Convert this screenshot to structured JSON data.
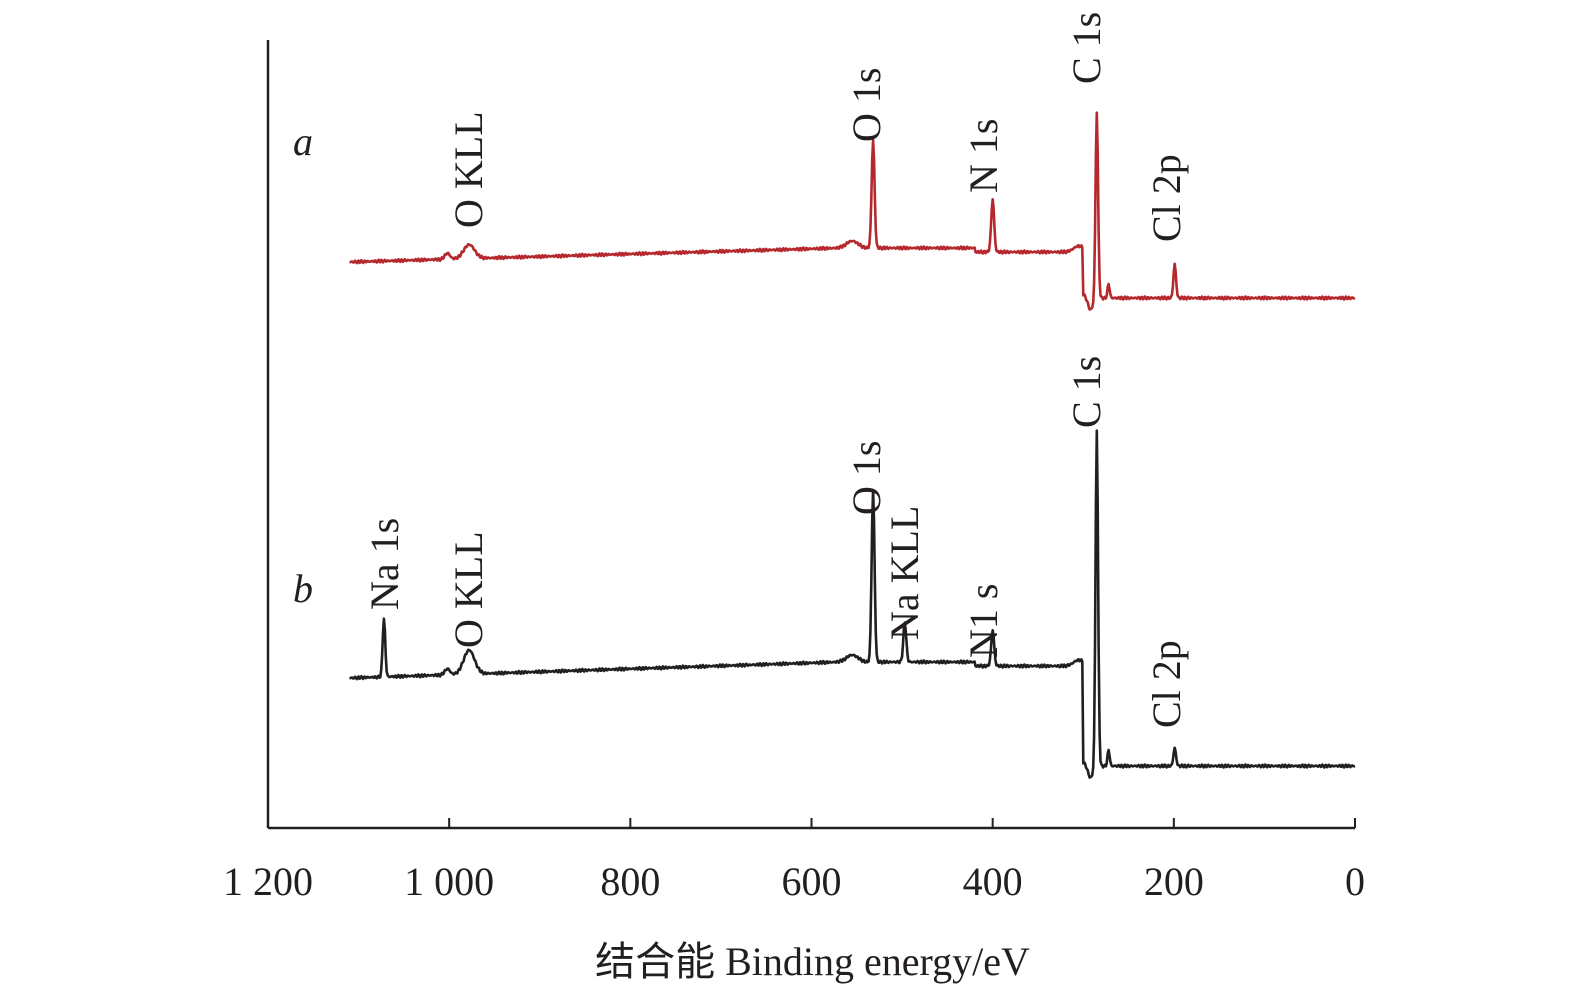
{
  "chart_data": {
    "type": "line",
    "title": "",
    "xlabel": "结合能 Binding energy/eV",
    "ylabel": "",
    "xlim": [
      1200,
      0
    ],
    "x_reversed": true,
    "y_ticks_shown": false,
    "x_ticks": [
      1200,
      1000,
      800,
      600,
      400,
      200,
      0
    ],
    "x_tick_labels": [
      "1 200",
      "1 000",
      "800",
      "600",
      "400",
      "200",
      "0"
    ],
    "grid": false,
    "legend": "none",
    "series": [
      {
        "name": "a",
        "color": "#b5282d",
        "peaks": [
          {
            "label": "O KLL",
            "x": 978
          },
          {
            "label": "O 1s",
            "x": 532
          },
          {
            "label": "N 1s",
            "x": 400
          },
          {
            "label": "C 1s",
            "x": 285
          },
          {
            "label": "Cl 2p",
            "x": 199
          }
        ]
      },
      {
        "name": "b",
        "color": "#231f20",
        "peaks": [
          {
            "label": "Na 1s",
            "x": 1072
          },
          {
            "label": "O KLL",
            "x": 978
          },
          {
            "label": "O 1s",
            "x": 532
          },
          {
            "label": "Na KLL",
            "x": 497
          },
          {
            "label": "N1 s",
            "x": 400
          },
          {
            "label": "C 1s",
            "x": 285
          },
          {
            "label": "Cl 2p",
            "x": 199
          }
        ]
      }
    ]
  }
}
